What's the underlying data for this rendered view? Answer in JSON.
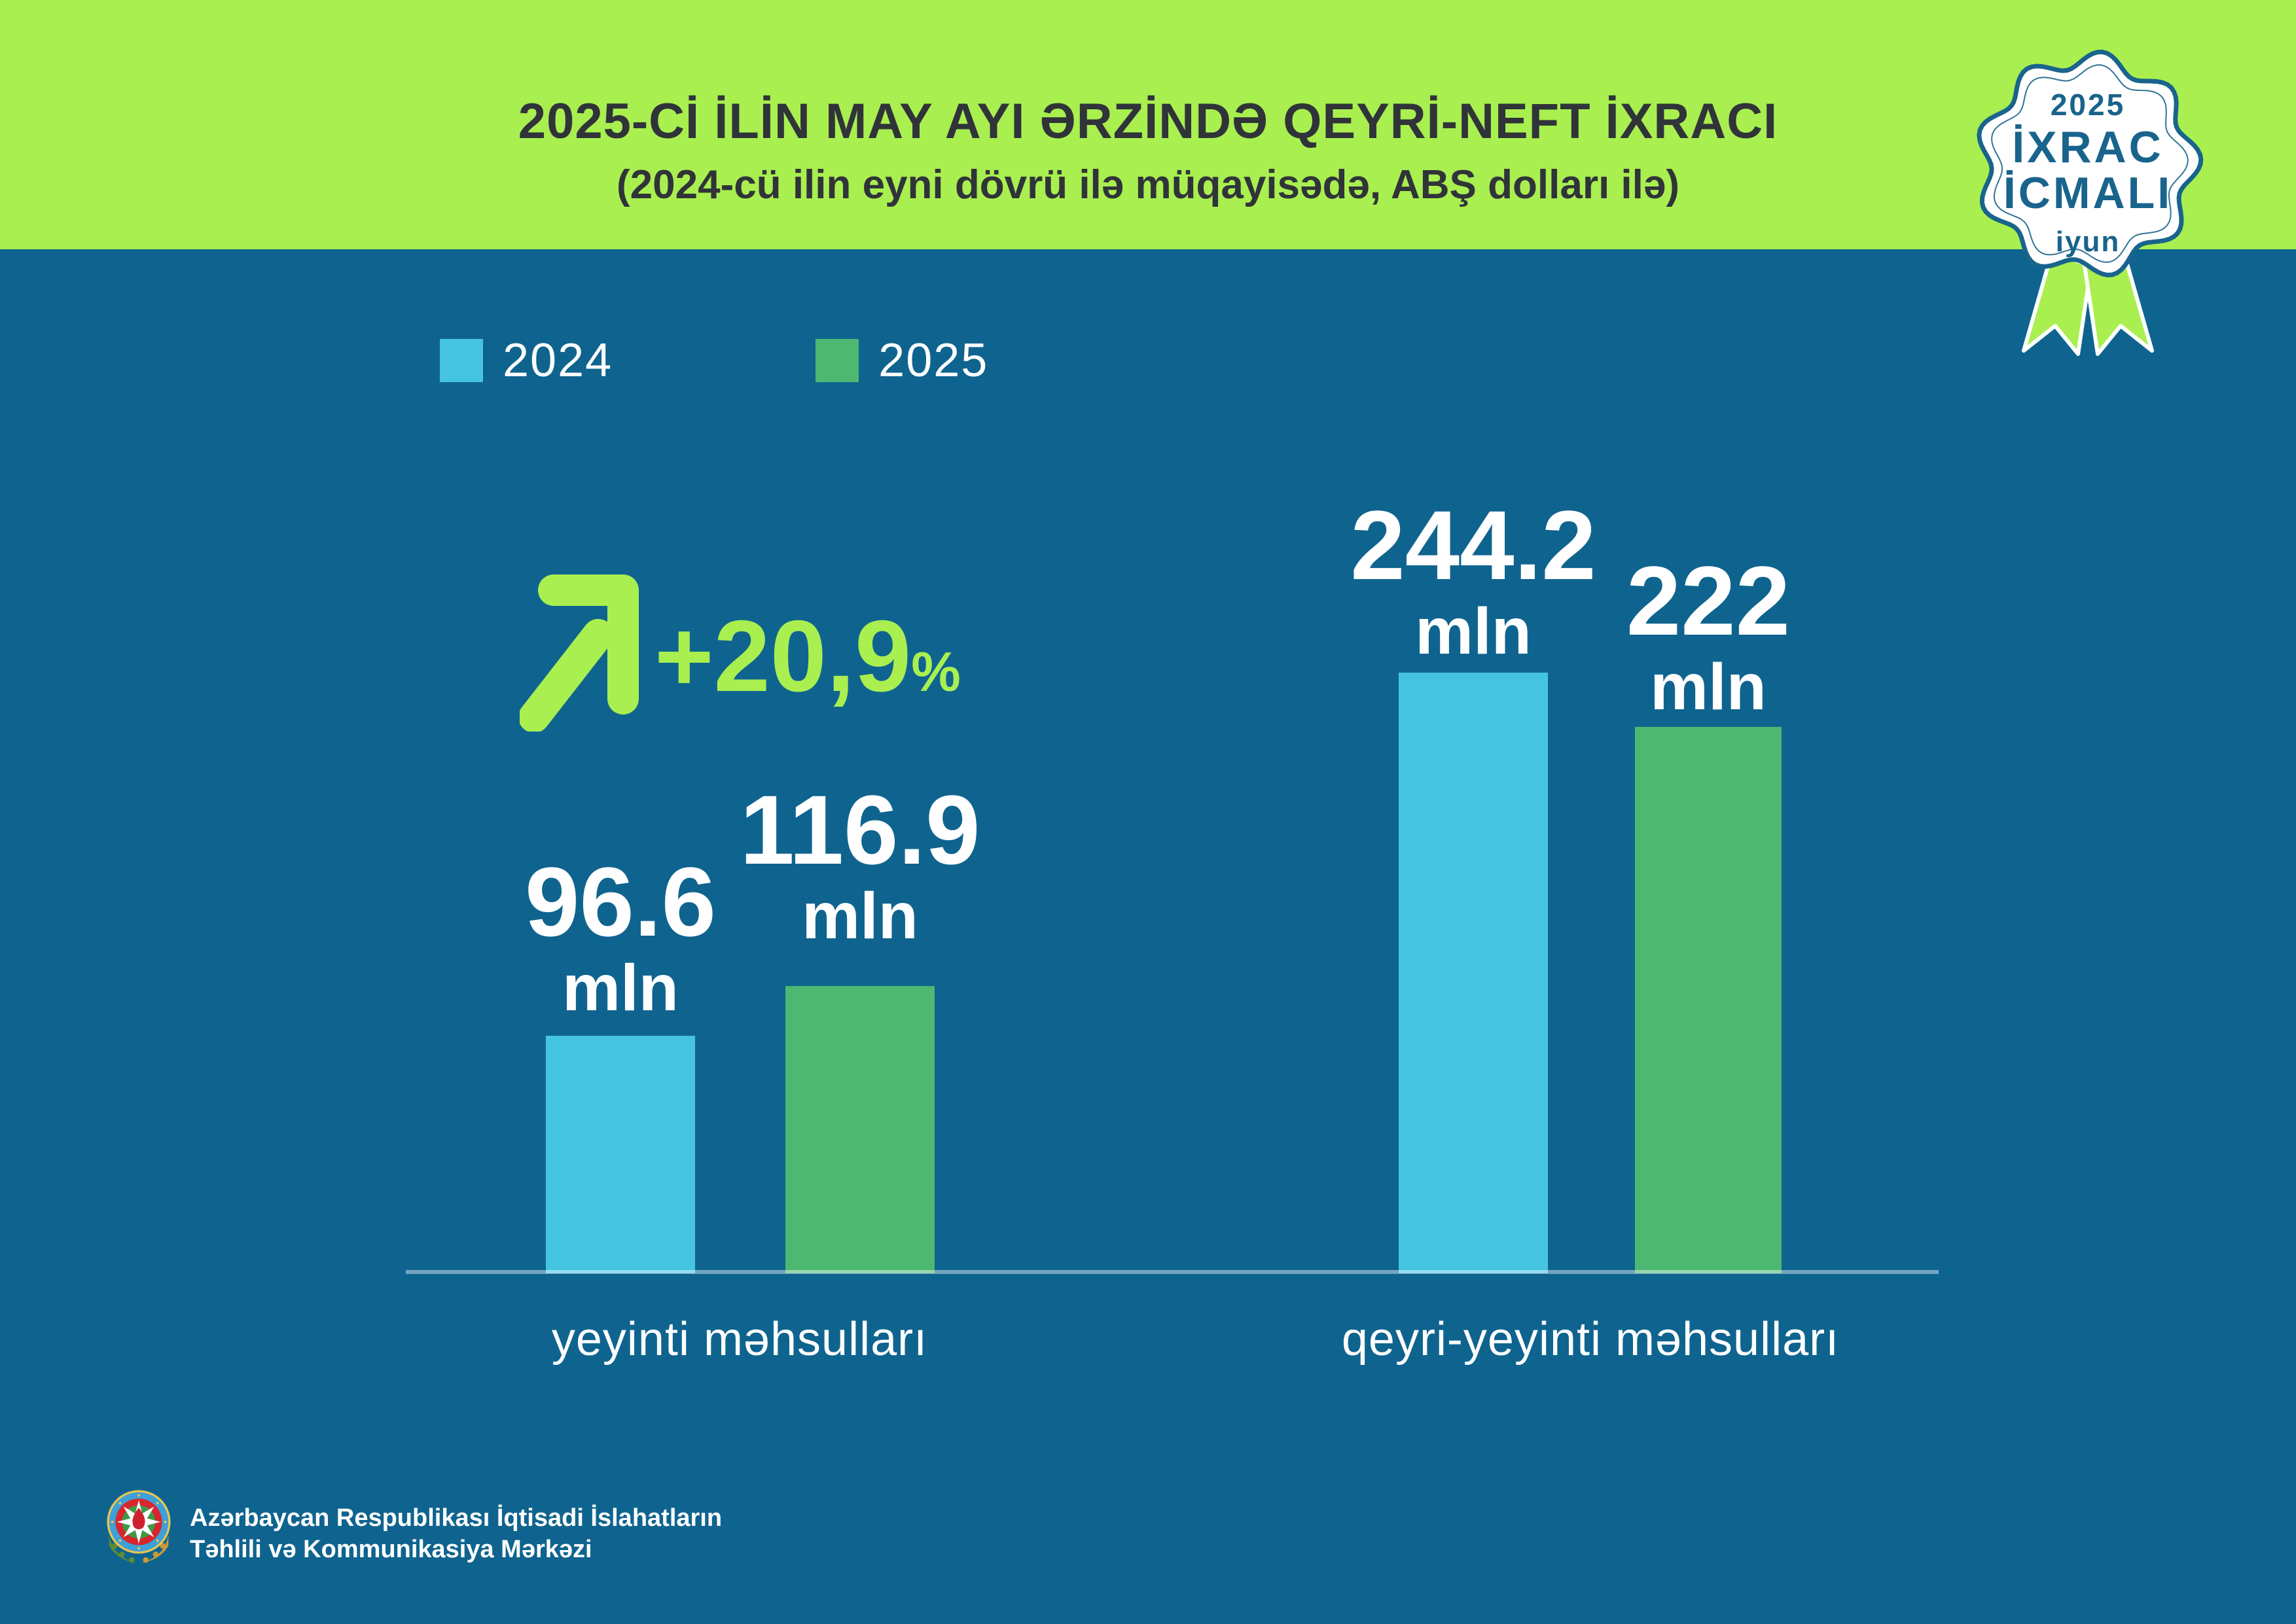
{
  "page": {
    "bg": "#0f648f"
  },
  "header": {
    "bg": "#a9ef50",
    "text_color": "#303439",
    "title": "2025-Cİ İLİN MAY AYI ƏRZİNDƏ QEYRİ-NEFT İXRACI",
    "subtitle": "(2024-cü ilin eyni dövrü ilə müqayisədə, ABŞ dolları ilə)"
  },
  "badge": {
    "accent": "#19648c",
    "year": "2025",
    "line1": "İXRAC",
    "line2": "İCMALI",
    "month": "iyun",
    "icon": "rosette-ribbon-badge"
  },
  "legend": [
    {
      "label": "2024",
      "color": "#45c4e0"
    },
    {
      "label": "2025",
      "color": "#4cb871"
    }
  ],
  "growth": {
    "arrow_icon": "arrow-up-right",
    "value": "+20,9",
    "percent_sign": "%",
    "color": "#a9ef50"
  },
  "chart_data": {
    "type": "bar",
    "title": "2025-Cİ İLİN MAY AYI ƏRZİNDƏ QEYRİ-NEFT İXRACI",
    "subtitle": "(2024-cü ilin eyni dövrü ilə müqayisədə, ABŞ dolları ilə)",
    "categories": [
      "yeyinti məhsulları",
      "qeyri-yeyinti məhsulları"
    ],
    "series": [
      {
        "name": "2024",
        "color": "#45c4e0",
        "values": [
          96.6,
          244.2
        ]
      },
      {
        "name": "2025",
        "color": "#4cb871",
        "values": [
          116.9,
          222
        ]
      }
    ],
    "labels": [
      [
        "96.6",
        "244.2"
      ],
      [
        "116.9",
        "222"
      ]
    ],
    "unit": "mln",
    "annotation": "+20,9%",
    "legend_position": "top-left",
    "grid": false,
    "baseline_color": "rgba(255,255,255,0.42)"
  },
  "footer": {
    "emblem_icon": "azerbaijan-coat-of-arms",
    "org_line1": "Azərbaycan Respublikası İqtisadi İslahatların",
    "org_line2": "Təhlili və Kommunikasiya Mərkəzi"
  }
}
